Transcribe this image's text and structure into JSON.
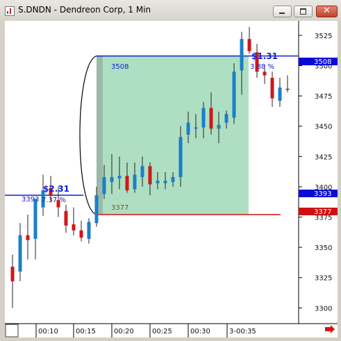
{
  "window": {
    "title": "S.DNDN - Dendreon Corp, 1 Min",
    "colors": {
      "frame": "#d4d0c8",
      "close": "#c0422c"
    }
  },
  "chart_data": {
    "type": "candlestick",
    "ylim": [
      3287,
      3537
    ],
    "y_ticks": [
      3300,
      3325,
      3350,
      3375,
      3400,
      3425,
      3450,
      3475,
      3500,
      3525
    ],
    "x_ticks": [
      "00:10",
      "00:15",
      "00:20",
      "00:25",
      "00:30",
      "3-00:35"
    ],
    "candles": [
      {
        "o": 3334,
        "h": 3344,
        "l": 3300,
        "c": 3322,
        "dir": "down"
      },
      {
        "o": 3330,
        "h": 3370,
        "l": 3322,
        "c": 3360,
        "dir": "up"
      },
      {
        "o": 3360,
        "h": 3377,
        "l": 3340,
        "c": 3356,
        "dir": "down"
      },
      {
        "o": 3357,
        "h": 3390,
        "l": 3340,
        "c": 3390,
        "dir": "up"
      },
      {
        "o": 3383,
        "h": 3410,
        "l": 3376,
        "c": 3397,
        "dir": "up"
      },
      {
        "o": 3399,
        "h": 3409,
        "l": 3388,
        "c": 3393,
        "dir": "down"
      },
      {
        "o": 3389,
        "h": 3400,
        "l": 3375,
        "c": 3383,
        "dir": "down"
      },
      {
        "o": 3380,
        "h": 3385,
        "l": 3362,
        "c": 3368,
        "dir": "down"
      },
      {
        "o": 3369,
        "h": 3383,
        "l": 3360,
        "c": 3364,
        "dir": "down"
      },
      {
        "o": 3364,
        "h": 3372,
        "l": 3355,
        "c": 3358,
        "dir": "down"
      },
      {
        "o": 3357,
        "h": 3374,
        "l": 3353,
        "c": 3371,
        "dir": "up"
      },
      {
        "o": 3370,
        "h": 3400,
        "l": 3367,
        "c": 3393,
        "dir": "up"
      },
      {
        "o": 3394,
        "h": 3418,
        "l": 3390,
        "c": 3408,
        "dir": "up"
      },
      {
        "o": 3404,
        "h": 3427,
        "l": 3394,
        "c": 3408,
        "dir": "up"
      },
      {
        "o": 3407,
        "h": 3425,
        "l": 3398,
        "c": 3409,
        "dir": "up"
      },
      {
        "o": 3409,
        "h": 3420,
        "l": 3395,
        "c": 3397,
        "dir": "down"
      },
      {
        "o": 3398,
        "h": 3420,
        "l": 3395,
        "c": 3410,
        "dir": "up"
      },
      {
        "o": 3408,
        "h": 3425,
        "l": 3400,
        "c": 3417,
        "dir": "up"
      },
      {
        "o": 3417,
        "h": 3420,
        "l": 3393,
        "c": 3402,
        "dir": "down"
      },
      {
        "o": 3403,
        "h": 3412,
        "l": 3398,
        "c": 3405,
        "dir": "up"
      },
      {
        "o": 3403,
        "h": 3412,
        "l": 3398,
        "c": 3405,
        "dir": "up"
      },
      {
        "o": 3404,
        "h": 3412,
        "l": 3400,
        "c": 3408,
        "dir": "up"
      },
      {
        "o": 3408,
        "h": 3450,
        "l": 3400,
        "c": 3441,
        "dir": "up"
      },
      {
        "o": 3443,
        "h": 3462,
        "l": 3436,
        "c": 3453,
        "dir": "up"
      },
      {
        "o": 3448,
        "h": 3460,
        "l": 3440,
        "c": 3449,
        "dir": "up"
      },
      {
        "o": 3449,
        "h": 3470,
        "l": 3440,
        "c": 3465,
        "dir": "up"
      },
      {
        "o": 3465,
        "h": 3478,
        "l": 3443,
        "c": 3448,
        "dir": "down"
      },
      {
        "o": 3448,
        "h": 3462,
        "l": 3436,
        "c": 3451,
        "dir": "up"
      },
      {
        "o": 3453,
        "h": 3463,
        "l": 3448,
        "c": 3460,
        "dir": "up"
      },
      {
        "o": 3457,
        "h": 3502,
        "l": 3452,
        "c": 3495,
        "dir": "up"
      },
      {
        "o": 3496,
        "h": 3528,
        "l": 3476,
        "c": 3522,
        "dir": "up"
      },
      {
        "o": 3522,
        "h": 3532,
        "l": 3510,
        "c": 3512,
        "dir": "down"
      },
      {
        "o": 3511,
        "h": 3518,
        "l": 3490,
        "c": 3495,
        "dir": "down"
      },
      {
        "o": 3495,
        "h": 3501,
        "l": 3485,
        "c": 3492,
        "dir": "down"
      },
      {
        "o": 3490,
        "h": 3495,
        "l": 3466,
        "c": 3473,
        "dir": "down"
      },
      {
        "o": 3471,
        "h": 3490,
        "l": 3466,
        "c": 3482,
        "dir": "up"
      },
      {
        "o": 3481,
        "h": 3492,
        "l": 3478,
        "c": 3480,
        "dir": "down"
      }
    ],
    "levels": {
      "high": {
        "price": 3508,
        "label": "3508",
        "tag": "3508",
        "color": "#1020d0"
      },
      "mid": {
        "price": 3393,
        "label": "3393",
        "tag": "3393",
        "color": "#1020d0"
      },
      "low": {
        "price": 3377,
        "label": "3377",
        "tag": "3377",
        "color": "#d01010"
      }
    },
    "annotations": {
      "move_high_dollar": "$1.31",
      "move_high_pct": "3.88 %",
      "move_mid_dollar": "$2.31",
      "move_mid_pct": "7.37 %"
    },
    "colors": {
      "up": "#1a7fc8",
      "down": "#d01818",
      "wick": "#222222",
      "zone_fill": "#aedfc3",
      "zone_shadow": "#7f8f86"
    }
  }
}
